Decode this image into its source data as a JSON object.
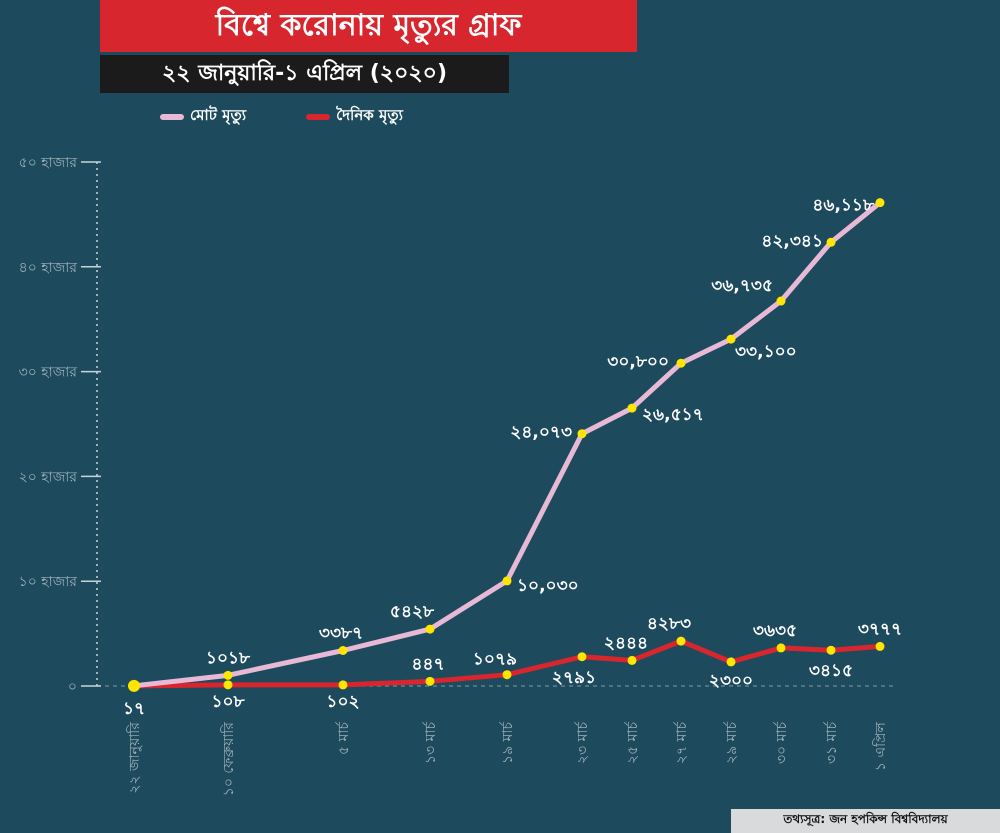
{
  "header": {
    "title": "বিশ্বে করোনায় মৃত্যুর গ্রাফ",
    "subtitle": "২২ জানুয়ারি-১ এপ্রিল (২০২০)"
  },
  "legend": [
    {
      "label": "মোট মৃত্যু",
      "color": "#e7b9d6"
    },
    {
      "label": "দৈনিক মৃত্যু",
      "color": "#d7262e"
    }
  ],
  "source": "তথ্যসূত্র: জন হপকিন্স বিশ্ববিদ্যালয়",
  "colors": {
    "background": "#1d4a5c",
    "total_line": "#e7b9d6",
    "daily_line": "#d7262e",
    "marker": "#ffe600",
    "axis_text": "#9fb1ba"
  },
  "chart_data": {
    "type": "line",
    "title": "বিশ্বে করোনায় মৃত্যুর গ্রাফ",
    "subtitle": "২২ জানুয়ারি-১ এপ্রিল (২০২০)",
    "xlabel": "",
    "ylabel": "",
    "ylim": [
      0,
      50000
    ],
    "grid": false,
    "legend_position": "top-left",
    "yticks": [
      {
        "value": 0,
        "label": "০"
      },
      {
        "value": 10000,
        "label": "১০ হাজার"
      },
      {
        "value": 20000,
        "label": "২০ হাজার"
      },
      {
        "value": 30000,
        "label": "৩০ হাজার"
      },
      {
        "value": 40000,
        "label": "৪০ হাজার"
      },
      {
        "value": 50000,
        "label": "৫০ হাজার"
      }
    ],
    "categories": [
      "২২ জানুয়ারি",
      "১০ ফেব্রুয়ারি",
      "৫ মার্চ",
      "১৩ মার্চ",
      "১৯ মার্চ",
      "২৩ মার্চ",
      "২৫ মার্চ",
      "২৭ মার্চ",
      "২৯ মার্চ",
      "৩০ মার্চ",
      "৩১ মার্চ",
      "১ এপ্রিল"
    ],
    "x": [
      "2020-01-22",
      "2020-02-10",
      "2020-03-05",
      "2020-03-13",
      "2020-03-19",
      "2020-03-23",
      "2020-03-25",
      "2020-03-27",
      "2020-03-29",
      "2020-03-30",
      "2020-03-31",
      "2020-04-01"
    ],
    "series": [
      {
        "name": "মোট মৃত্যু",
        "values": [
          17,
          1018,
          3387,
          5428,
          10030,
          24073,
          26517,
          30800,
          33100,
          36735,
          42341,
          46118
        ],
        "labels": [
          "",
          "১০১৮",
          "৩৩৮৭",
          "৫৪২৮",
          "১০,০৩০",
          "২৪,০৭৩",
          "২৬,৫১৭",
          "৩০,৮০০",
          "৩৩,১০০",
          "৩৬,৭৩৫",
          "৪২,৩৪১",
          "৪৬,১১৮"
        ]
      },
      {
        "name": "দৈনিক মৃত্যু",
        "values": [
          17,
          108,
          102,
          447,
          1079,
          2791,
          2444,
          4283,
          2300,
          3635,
          3415,
          3777
        ],
        "labels": [
          "১৭",
          "১০৮",
          "১০২",
          "৪৪৭",
          "১০৭৯",
          "২৭৯১",
          "২৪৪৪",
          "৪২৮৩",
          "২৩০০",
          "৩৬৩৫",
          "৩৪১৫",
          "৩৭৭৭"
        ]
      }
    ]
  }
}
